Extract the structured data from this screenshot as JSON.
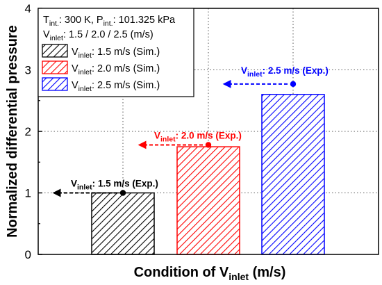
{
  "chart_data": {
    "type": "bar",
    "title": "",
    "xlabel": {
      "main": "Condition of V",
      "sub": "inlet",
      "tail": " (m/s)"
    },
    "ylabel": "Normalized differential pressure",
    "ylim": [
      0,
      4
    ],
    "yticks": [
      0,
      1,
      2,
      3,
      4
    ],
    "grid": true,
    "legend_placement": "top-left",
    "legend_header": [
      {
        "parts": [
          {
            "t": "T"
          },
          {
            "t": "int.",
            "sub": true
          },
          {
            "t": ": 300 K, P"
          },
          {
            "t": "int.",
            "sub": true
          },
          {
            "t": ": 101.325 kPa"
          }
        ]
      },
      {
        "parts": [
          {
            "t": "V"
          },
          {
            "t": "inlet",
            "sub": true
          },
          {
            "t": ": 1.5 / 2.0 / 2.5 (m/s)"
          }
        ]
      }
    ],
    "series": [
      {
        "name": "V_inlet: 1.5 m/s (Sim.)",
        "label_main": "V",
        "label_sub": "inlet",
        "label_tail": ": 1.5 m/s (Sim.)",
        "value": 1.0,
        "color": "#000000"
      },
      {
        "name": "V_inlet: 2.0 m/s (Sim.)",
        "label_main": "V",
        "label_sub": "inlet",
        "label_tail": ": 2.0 m/s (Sim.)",
        "value": 1.75,
        "color": "#ff0000"
      },
      {
        "name": "V_inlet: 2.5 m/s (Sim.)",
        "label_main": "V",
        "label_sub": "inlet",
        "label_tail": ": 2.5 m/s (Sim.)",
        "value": 2.6,
        "color": "#0000ff"
      }
    ],
    "experimental": [
      {
        "value": 1.0,
        "color": "#000000",
        "label_main": "V",
        "label_sub": "inlet",
        "label_tail": ": 1.5 m/s (Exp.)"
      },
      {
        "value": 1.78,
        "color": "#ff0000",
        "label_main": "V",
        "label_sub": "inlet",
        "label_tail": ": 2.0 m/s (Exp.)"
      },
      {
        "value": 2.77,
        "color": "#0000ff",
        "label_main": "V",
        "label_sub": "inlet",
        "label_tail": ": 2.5 m/s (Exp.)"
      }
    ]
  }
}
